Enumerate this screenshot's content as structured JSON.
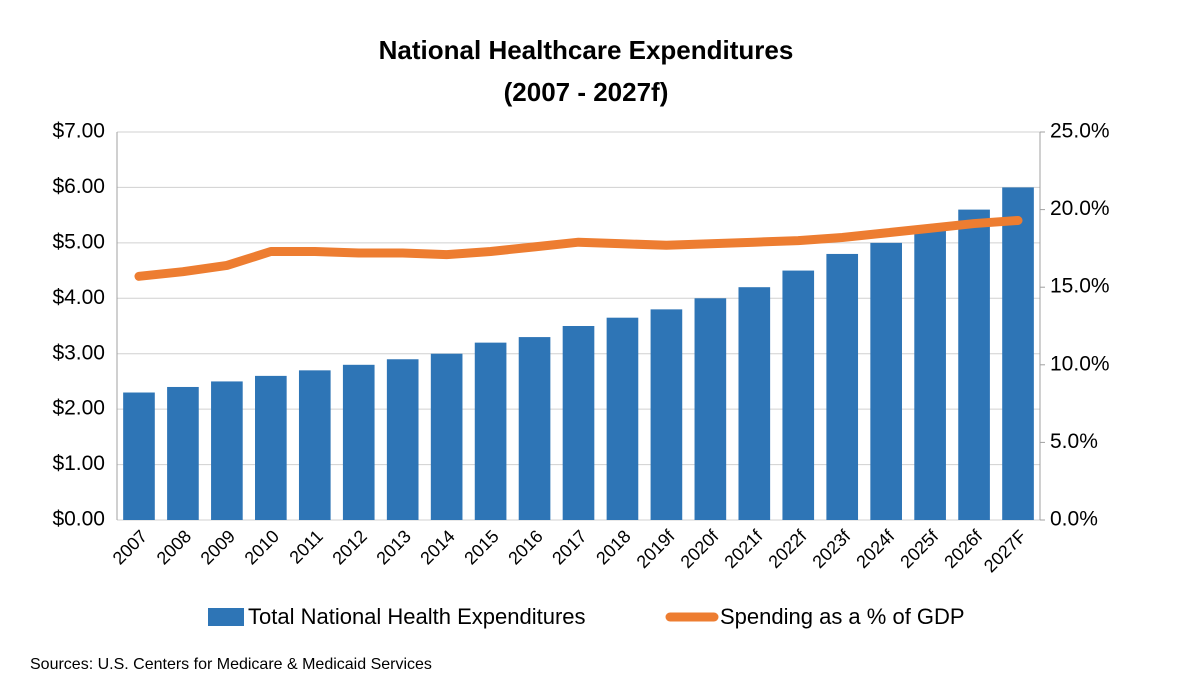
{
  "chart_data": {
    "type": "bar_line",
    "title": "National Healthcare Expenditures",
    "subtitle": "(2007 - 2027f)",
    "source": "Sources: U.S. Centers for Medicare & Medicaid Services",
    "categories": [
      "2007",
      "2008",
      "2009",
      "2010",
      "2011",
      "2012",
      "2013",
      "2014",
      "2015",
      "2016",
      "2017",
      "2018",
      "2019f",
      "2020f",
      "2021f",
      "2022f",
      "2023f",
      "2024f",
      "2025f",
      "2026f",
      "2027F"
    ],
    "series": [
      {
        "name": "Total National Health Expenditures",
        "type": "bar",
        "color": "#2e75b6",
        "values": [
          2.3,
          2.4,
          2.5,
          2.6,
          2.7,
          2.8,
          2.9,
          3.0,
          3.2,
          3.3,
          3.5,
          3.65,
          3.8,
          4.0,
          4.2,
          4.5,
          4.8,
          5.0,
          5.3,
          5.6,
          6.0
        ]
      },
      {
        "name": "Spending as a % of GDP",
        "type": "line",
        "axis": "y2",
        "color": "#ed7d31",
        "values": [
          15.7,
          16.0,
          16.4,
          17.3,
          17.3,
          17.2,
          17.2,
          17.1,
          17.3,
          17.6,
          17.9,
          17.8,
          17.7,
          17.8,
          17.9,
          18.0,
          18.2,
          18.5,
          18.8,
          19.1,
          19.3
        ]
      }
    ],
    "ylim": [
      0,
      7
    ],
    "yticks": [
      {
        "value": 0,
        "label": "$0.00"
      },
      {
        "value": 1,
        "label": "$1.00"
      },
      {
        "value": 2,
        "label": "$2.00"
      },
      {
        "value": 3,
        "label": "$3.00"
      },
      {
        "value": 4,
        "label": "$4.00"
      },
      {
        "value": 5,
        "label": "$5.00"
      },
      {
        "value": 6,
        "label": "$6.00"
      },
      {
        "value": 7,
        "label": "$7.00"
      }
    ],
    "y2lim": [
      0,
      25
    ],
    "y2ticks": [
      {
        "value": 0,
        "label": "0.0%"
      },
      {
        "value": 5,
        "label": "5.0%"
      },
      {
        "value": 10,
        "label": "10.0%"
      },
      {
        "value": 15,
        "label": "15.0%"
      },
      {
        "value": 20,
        "label": "20.0%"
      },
      {
        "value": 25,
        "label": "25.0%"
      }
    ],
    "grid": true,
    "legend": "bottom"
  }
}
